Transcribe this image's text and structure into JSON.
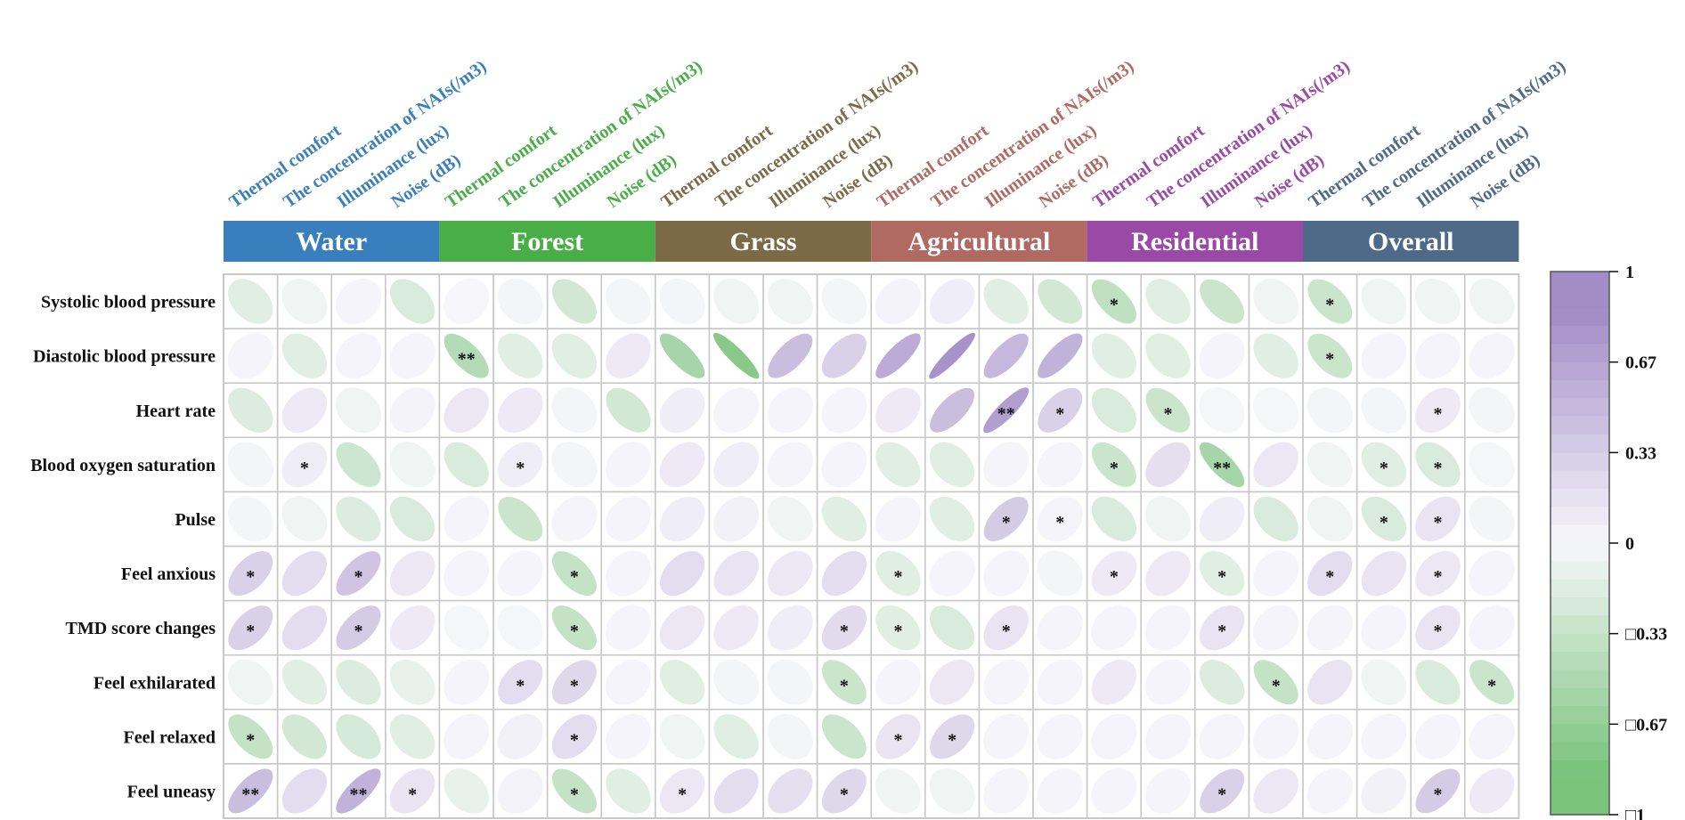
{
  "chart_data": {
    "type": "heatmap",
    "title": "",
    "groups": [
      {
        "name": "Water",
        "color": "#3a7fbd"
      },
      {
        "name": "Forest",
        "color": "#4aae48"
      },
      {
        "name": "Grass",
        "color": "#7a6a45"
      },
      {
        "name": "Agricultural",
        "color": "#b06a62"
      },
      {
        "name": "Residential",
        "color": "#9a4aa6"
      },
      {
        "name": "Overall",
        "color": "#4f6a88"
      }
    ],
    "column_labels": [
      "Thermal comfort",
      "The concentration of NAIs(/m3)",
      "Illuminance (lux)",
      "Noise (dB)"
    ],
    "rows": [
      "Systolic blood pressure",
      "Diastolic blood pressure",
      "Heart rate",
      "Blood oxygen saturation",
      "Pulse",
      "Feel anxious",
      "TMD score changes",
      "Feel exhilarated",
      "Feel relaxed",
      "Feel uneasy"
    ],
    "values": [
      [
        -0.15,
        -0.05,
        0.02,
        -0.2,
        0.0,
        -0.03,
        -0.25,
        -0.03,
        -0.03,
        -0.05,
        -0.05,
        -0.03,
        0.03,
        0.08,
        -0.15,
        -0.25,
        -0.38,
        -0.15,
        -0.3,
        -0.05,
        -0.3,
        -0.05,
        -0.05,
        -0.05
      ],
      [
        0.02,
        -0.15,
        0.02,
        0.02,
        -0.45,
        -0.15,
        -0.15,
        0.1,
        -0.55,
        -0.75,
        0.45,
        0.3,
        0.6,
        0.8,
        0.5,
        0.55,
        -0.15,
        -0.15,
        0.02,
        -0.15,
        -0.3,
        0.02,
        0.02,
        0.02
      ],
      [
        -0.18,
        0.1,
        -0.05,
        0.03,
        0.12,
        0.1,
        -0.03,
        -0.25,
        0.08,
        0.02,
        0.02,
        0.02,
        0.1,
        0.45,
        0.7,
        0.3,
        -0.2,
        -0.3,
        -0.02,
        -0.02,
        -0.03,
        -0.03,
        0.1,
        -0.03
      ],
      [
        -0.03,
        0.08,
        -0.28,
        -0.05,
        -0.2,
        0.08,
        -0.03,
        0.02,
        0.1,
        0.08,
        0.02,
        0.02,
        -0.15,
        -0.15,
        0.02,
        0.02,
        -0.3,
        0.18,
        -0.55,
        0.12,
        -0.05,
        -0.15,
        -0.2,
        -0.02
      ],
      [
        -0.03,
        -0.05,
        -0.18,
        -0.2,
        0.02,
        -0.3,
        0.02,
        0.02,
        0.08,
        0.05,
        -0.05,
        -0.15,
        0.02,
        -0.15,
        0.35,
        0.02,
        -0.2,
        -0.05,
        0.08,
        -0.2,
        -0.05,
        -0.2,
        0.15,
        -0.03
      ],
      [
        0.3,
        0.2,
        0.4,
        0.12,
        0.02,
        0.02,
        -0.35,
        0.02,
        0.2,
        0.15,
        0.12,
        0.2,
        -0.15,
        0.02,
        0.02,
        -0.03,
        0.1,
        0.1,
        -0.15,
        0.02,
        0.2,
        0.15,
        0.12,
        0.02
      ],
      [
        0.3,
        0.2,
        0.35,
        0.1,
        -0.02,
        -0.02,
        -0.35,
        0.02,
        0.12,
        0.1,
        0.08,
        0.22,
        -0.15,
        -0.2,
        0.15,
        0.02,
        0.02,
        0.02,
        0.15,
        0.02,
        0.02,
        0.02,
        0.15,
        0.02
      ],
      [
        -0.05,
        -0.15,
        -0.18,
        -0.1,
        0.02,
        0.2,
        0.25,
        0.02,
        -0.15,
        -0.03,
        -0.03,
        -0.3,
        0.02,
        0.12,
        0.02,
        0.02,
        0.1,
        0.02,
        -0.18,
        -0.35,
        0.15,
        -0.05,
        -0.2,
        -0.3
      ],
      [
        -0.35,
        -0.25,
        -0.22,
        -0.15,
        0.02,
        0.05,
        0.2,
        0.02,
        -0.05,
        -0.15,
        -0.03,
        -0.3,
        0.15,
        0.25,
        0.02,
        0.02,
        0.02,
        0.02,
        0.02,
        0.02,
        0.02,
        0.02,
        0.02,
        0.02
      ],
      [
        0.45,
        0.2,
        0.55,
        0.15,
        -0.1,
        0.03,
        -0.35,
        -0.15,
        0.12,
        0.2,
        0.18,
        0.25,
        -0.05,
        -0.05,
        0.02,
        0.02,
        0.02,
        0.02,
        0.3,
        0.12,
        0.02,
        0.05,
        0.35,
        0.1
      ]
    ],
    "significance": [
      [
        "",
        "",
        "",
        "",
        "",
        "",
        "",
        "",
        "",
        "",
        "",
        "",
        "",
        "",
        "",
        "",
        "*",
        "",
        "",
        "",
        "*",
        "",
        "",
        ""
      ],
      [
        "",
        "",
        "",
        "",
        "**",
        "",
        "",
        "",
        "",
        "",
        "",
        "",
        "",
        "",
        "",
        "",
        "",
        "",
        "",
        "",
        "*",
        "",
        "",
        ""
      ],
      [
        "",
        "",
        "",
        "",
        "",
        "",
        "",
        "",
        "",
        "",
        "",
        "",
        "",
        "",
        "**",
        "*",
        "",
        "*",
        "",
        "",
        "",
        "",
        "*",
        ""
      ],
      [
        "",
        "*",
        "",
        "",
        "",
        "*",
        "",
        "",
        "",
        "",
        "",
        "",
        "",
        "",
        "",
        "",
        "*",
        "",
        "**",
        "",
        "",
        "*",
        "*",
        ""
      ],
      [
        "",
        "",
        "",
        "",
        "",
        "",
        "",
        "",
        "",
        "",
        "",
        "",
        "",
        "",
        "*",
        "*",
        "",
        "",
        "",
        "",
        "",
        "*",
        "*",
        ""
      ],
      [
        "*",
        "",
        "*",
        "",
        "",
        "",
        "*",
        "",
        "",
        "",
        "",
        "",
        "*",
        "",
        "",
        "",
        "*",
        "",
        "*",
        "",
        "*",
        "",
        "*",
        ""
      ],
      [
        "*",
        "",
        "*",
        "",
        "",
        "",
        "*",
        "",
        "",
        "",
        "",
        "*",
        "*",
        "",
        "*",
        "",
        "",
        "",
        "*",
        "",
        "",
        "",
        "*",
        ""
      ],
      [
        "",
        "",
        "",
        "",
        "",
        "*",
        "*",
        "",
        "",
        "",
        "",
        "*",
        "",
        "",
        "",
        "",
        "",
        "",
        "",
        "*",
        "",
        "",
        "",
        "*"
      ],
      [
        "*",
        "",
        "",
        "",
        "",
        "",
        "*",
        "",
        "",
        "",
        "",
        "",
        "*",
        "*",
        "",
        "",
        "",
        "",
        "",
        "",
        "",
        "",
        "",
        ""
      ],
      [
        "**",
        "",
        "**",
        "*",
        "",
        "",
        "*",
        "",
        "*",
        "",
        "",
        "*",
        "",
        "",
        "",
        "",
        "",
        "",
        "*",
        "",
        "",
        "",
        "*",
        ""
      ]
    ],
    "colorbar": {
      "range": [
        -1,
        1
      ],
      "ticks": [
        "1",
        "0.67",
        "0.33",
        "0",
        "□0.33",
        "□0.67",
        "□1"
      ],
      "positive_color": "#a28cc6",
      "negative_color": "#79c37a"
    }
  }
}
